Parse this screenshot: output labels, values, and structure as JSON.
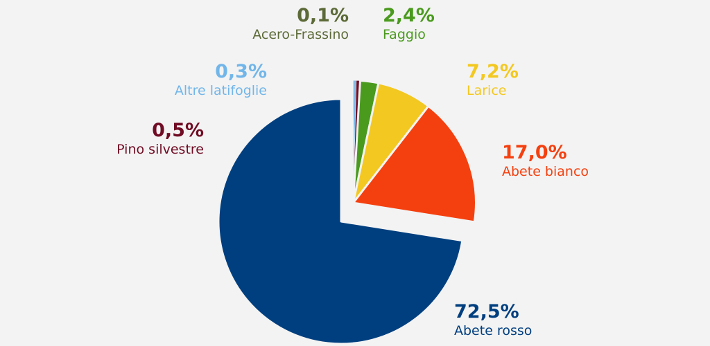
{
  "chart_data": {
    "type": "pie",
    "title": "",
    "slices": [
      {
        "name": "Abete rosso",
        "value": 72.5,
        "value_label": "72,5%",
        "color": "#003f7f",
        "exploded": false
      },
      {
        "name": "Abete bianco",
        "value": 17.0,
        "value_label": "17,0%",
        "color": "#f4400f",
        "exploded": true
      },
      {
        "name": "Larice",
        "value": 7.2,
        "value_label": "7,2%",
        "color": "#f3c820",
        "exploded": true
      },
      {
        "name": "Faggio",
        "value": 2.4,
        "value_label": "2,4%",
        "color": "#4a9a1e",
        "exploded": true
      },
      {
        "name": "Pino silvestre",
        "value": 0.5,
        "value_label": "0,5%",
        "color": "#700c24",
        "exploded": true
      },
      {
        "name": "Altre latifoglie",
        "value": 0.3,
        "value_label": "0,3%",
        "color": "#72b6e9",
        "exploded": true
      },
      {
        "name": "Acero-Frassino",
        "value": 0.1,
        "value_label": "0,1%",
        "color": "#5c6a38",
        "exploded": true
      }
    ],
    "legend": "labels beside slices"
  }
}
